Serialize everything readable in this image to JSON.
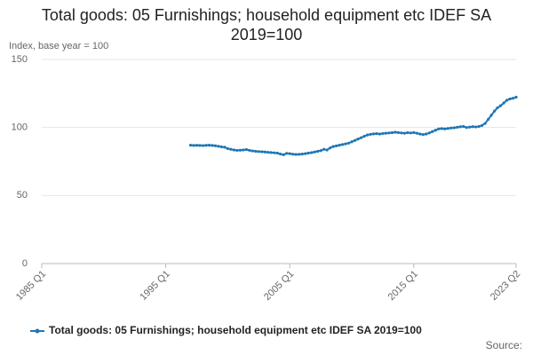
{
  "chart_data": {
    "type": "line",
    "title": "Total goods: 05 Furnishings; household equipment etc IDEF SA 2019=100",
    "y_label": "Index, base year = 100",
    "source": "Source:",
    "x": [
      1997,
      1997.25,
      1997.5,
      1997.75,
      1998,
      1998.25,
      1998.5,
      1998.75,
      1999,
      1999.25,
      1999.5,
      1999.75,
      2000,
      2000.25,
      2000.5,
      2000.75,
      2001,
      2001.25,
      2001.5,
      2001.75,
      2002,
      2002.25,
      2002.5,
      2002.75,
      2003,
      2003.25,
      2003.5,
      2003.75,
      2004,
      2004.25,
      2004.5,
      2004.75,
      2005,
      2005.25,
      2005.5,
      2005.75,
      2006,
      2006.25,
      2006.5,
      2006.75,
      2007,
      2007.25,
      2007.5,
      2007.75,
      2008,
      2008.25,
      2008.5,
      2008.75,
      2009,
      2009.25,
      2009.5,
      2009.75,
      2010,
      2010.25,
      2010.5,
      2010.75,
      2011,
      2011.25,
      2011.5,
      2011.75,
      2012,
      2012.25,
      2012.5,
      2012.75,
      2013,
      2013.25,
      2013.5,
      2013.75,
      2014,
      2014.25,
      2014.5,
      2014.75,
      2015,
      2015.25,
      2015.5,
      2015.75,
      2016,
      2016.25,
      2016.5,
      2016.75,
      2017,
      2017.25,
      2017.5,
      2017.75,
      2018,
      2018.25,
      2018.5,
      2018.75,
      2019,
      2019.25,
      2019.5,
      2019.75,
      2020,
      2020.25,
      2020.5,
      2020.75,
      2021,
      2021.25,
      2021.5,
      2021.75,
      2022,
      2022.25,
      2022.5,
      2022.75,
      2023,
      2023.25
    ],
    "series": [
      {
        "name": "Total goods: 05 Furnishings; household equipment etc IDEF SA 2019=100",
        "color": "#1f77b4",
        "values": [
          87,
          86.8,
          86.9,
          86.8,
          86.7,
          86.9,
          87,
          86.8,
          86.6,
          86.2,
          85.8,
          85.5,
          84.5,
          84,
          83.5,
          83.2,
          83.3,
          83.5,
          83.8,
          83.2,
          82.8,
          82.5,
          82.3,
          82.2,
          82,
          81.8,
          81.6,
          81.4,
          81.2,
          80.5,
          80,
          81,
          80.8,
          80.4,
          80.2,
          80.3,
          80.5,
          80.8,
          81.2,
          81.5,
          82,
          82.5,
          83,
          84,
          83.5,
          85,
          86,
          86.5,
          87,
          87.5,
          88,
          88.5,
          89.5,
          90.5,
          91.5,
          92.5,
          93.5,
          94.5,
          95,
          95.3,
          95.5,
          95.2,
          95.6,
          95.8,
          96,
          96.2,
          96.5,
          96.3,
          96,
          95.8,
          96.2,
          96,
          96.3,
          95.8,
          95.2,
          94.8,
          95.2,
          96,
          97,
          98,
          99,
          99.2,
          99,
          99.3,
          99.6,
          99.8,
          100.2,
          100.5,
          100.8,
          100,
          100.3,
          100.6,
          100.4,
          100.8,
          101.5,
          103,
          106,
          109,
          112,
          114.5,
          116,
          118,
          120,
          121,
          121.5,
          122.3
        ]
      }
    ],
    "xlim": [
      1985,
      2023.25
    ],
    "xticks": [
      {
        "value": 1985,
        "label": "1985 Q1"
      },
      {
        "value": 1995,
        "label": "1995 Q1"
      },
      {
        "value": 2005,
        "label": "2005 Q1"
      },
      {
        "value": 2015,
        "label": "2015 Q1"
      },
      {
        "value": 2023.25,
        "label": "2023 Q2"
      }
    ],
    "ylim": [
      0,
      150
    ],
    "yticks": [
      0,
      50,
      100,
      150
    ],
    "grid": true
  }
}
